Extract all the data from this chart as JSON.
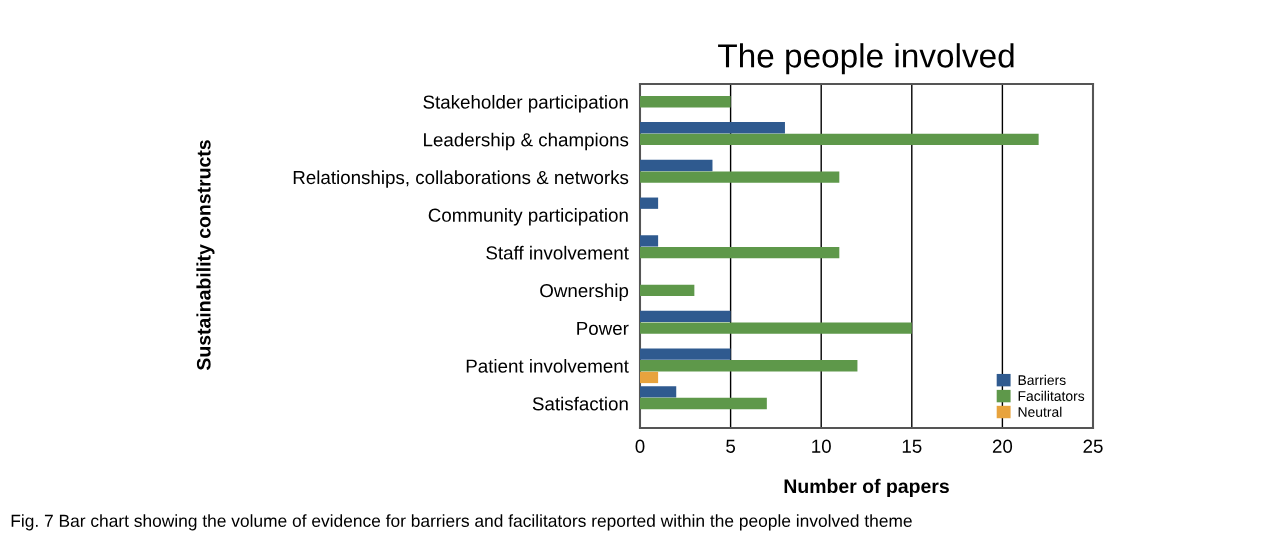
{
  "chart_data": {
    "type": "bar",
    "orientation": "horizontal",
    "title": "The people involved",
    "xlabel": "Number of papers",
    "ylabel": "Sustainability constructs",
    "categories": [
      "Stakeholder participation",
      "Leadership & champions",
      "Relationships, collaborations & networks",
      "Community participation",
      "Staff involvement",
      "Ownership",
      "Power",
      "Patient involvement",
      "Satisfaction"
    ],
    "series": [
      {
        "name": "Barriers",
        "color": "#2f5a8f",
        "values": [
          null,
          8,
          4,
          1,
          1,
          null,
          5,
          5,
          2
        ]
      },
      {
        "name": "Facilitators",
        "color": "#5e984a",
        "values": [
          5,
          22,
          11,
          null,
          11,
          3,
          15,
          12,
          7
        ]
      },
      {
        "name": "Neutral",
        "color": "#e8a33d",
        "values": [
          null,
          null,
          null,
          null,
          null,
          null,
          null,
          1,
          null
        ]
      }
    ],
    "xlim": [
      0,
      25
    ],
    "xticks": [
      0,
      5,
      10,
      15,
      20,
      25
    ],
    "grid": "x",
    "legend": "bottom right",
    "annotations": [
      "Fig. 7 Bar chart showing the volume of evidence for barriers and facilitators reported within the people involved theme"
    ]
  }
}
